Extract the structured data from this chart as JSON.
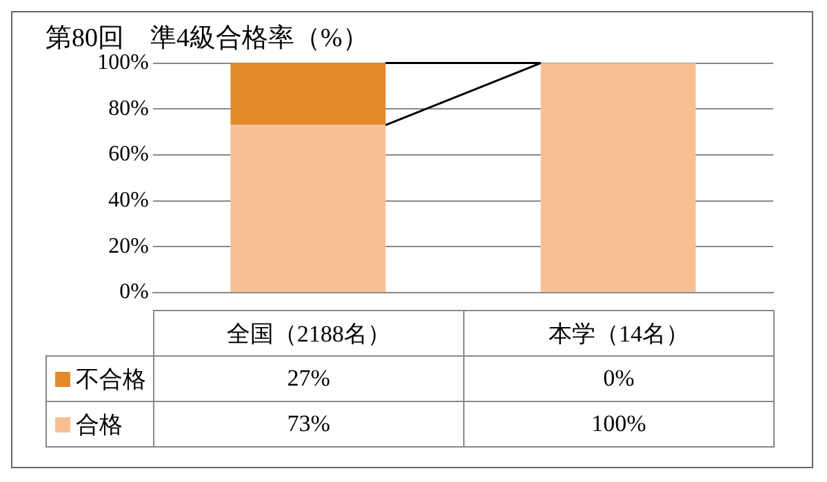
{
  "chart_data": {
    "type": "bar",
    "title": "第80回　準4級合格率（%）",
    "categories": [
      "全国（2188名）",
      "本学（14名）"
    ],
    "stacked": true,
    "series": [
      {
        "name": "合格",
        "color": "#f8bf93",
        "values": [
          73,
          100
        ],
        "value_labels": [
          "73%",
          "100%"
        ]
      },
      {
        "name": "不合格",
        "color": "#e08a2c",
        "values": [
          27,
          0
        ],
        "value_labels": [
          "27%",
          "0%"
        ]
      }
    ],
    "ylim": [
      0,
      100
    ],
    "yticks": [
      {
        "value": 0,
        "label": "0%"
      },
      {
        "value": 20,
        "label": "20%"
      },
      {
        "value": 40,
        "label": "40%"
      },
      {
        "value": 60,
        "label": "60%"
      },
      {
        "value": 80,
        "label": "80%"
      },
      {
        "value": 100,
        "label": "100%"
      }
    ],
    "grid": "y",
    "legend": "bottom left"
  }
}
